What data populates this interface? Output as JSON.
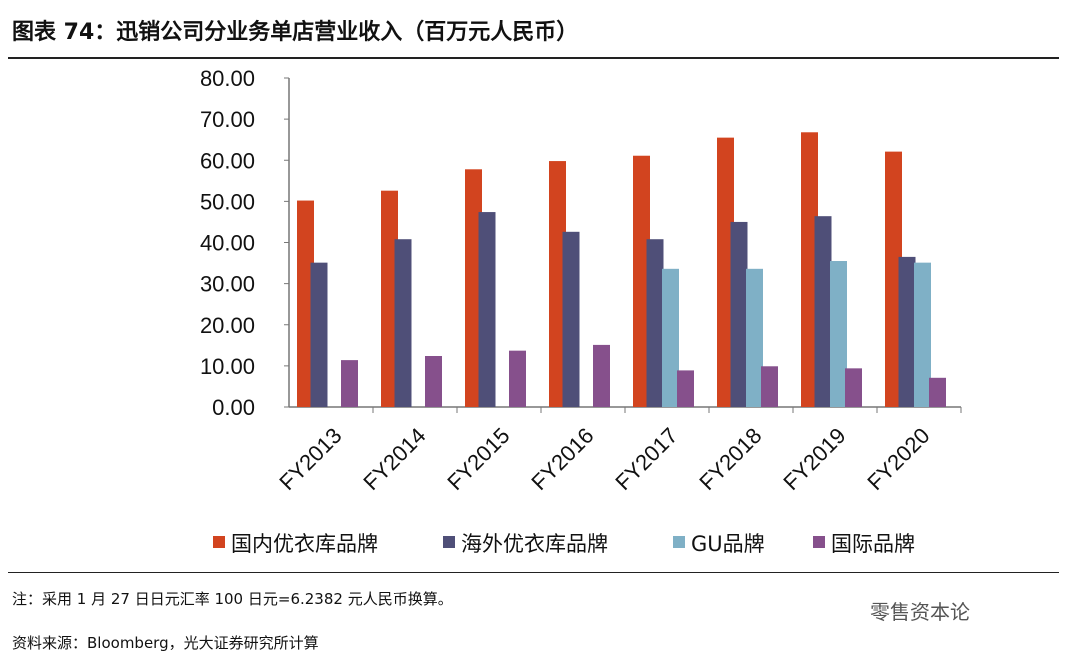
{
  "chart_data": {
    "type": "bar",
    "title": "图表 74：迅销公司分业务单店营业收入（百万元人民币）",
    "categories": [
      "FY2013",
      "FY2014",
      "FY2015",
      "FY2016",
      "FY2017",
      "FY2018",
      "FY2019",
      "FY2020"
    ],
    "series": [
      {
        "name": "国内优衣库品牌",
        "color": "#d2441f",
        "values": [
          50.2,
          52.6,
          57.8,
          59.8,
          61.1,
          65.5,
          66.8,
          62.1
        ]
      },
      {
        "name": "海外优衣库品牌",
        "color": "#4f4f78",
        "values": [
          35.1,
          40.8,
          47.4,
          42.6,
          40.8,
          45.0,
          46.4,
          36.5
        ]
      },
      {
        "name": "GU品牌",
        "color": "#7fb0c6",
        "values": [
          null,
          null,
          null,
          null,
          33.6,
          33.6,
          35.5,
          35.1
        ]
      },
      {
        "name": "国际品牌",
        "color": "#86508c",
        "values": [
          11.4,
          12.4,
          13.7,
          15.1,
          8.9,
          9.9,
          9.4,
          7.1
        ]
      }
    ],
    "ylim": [
      0,
      80
    ],
    "yticks": [
      "0.00",
      "10.00",
      "20.00",
      "30.00",
      "40.00",
      "50.00",
      "60.00",
      "70.00",
      "80.00"
    ],
    "legend_position": "bottom",
    "grid": false
  },
  "notes": {
    "note": "注：采用 1 月 27 日日元汇率 100 日元=6.2382 元人民币换算。",
    "source": "资料来源：Bloomberg，光大证券研究所计算",
    "watermark": "零售资本论"
  }
}
